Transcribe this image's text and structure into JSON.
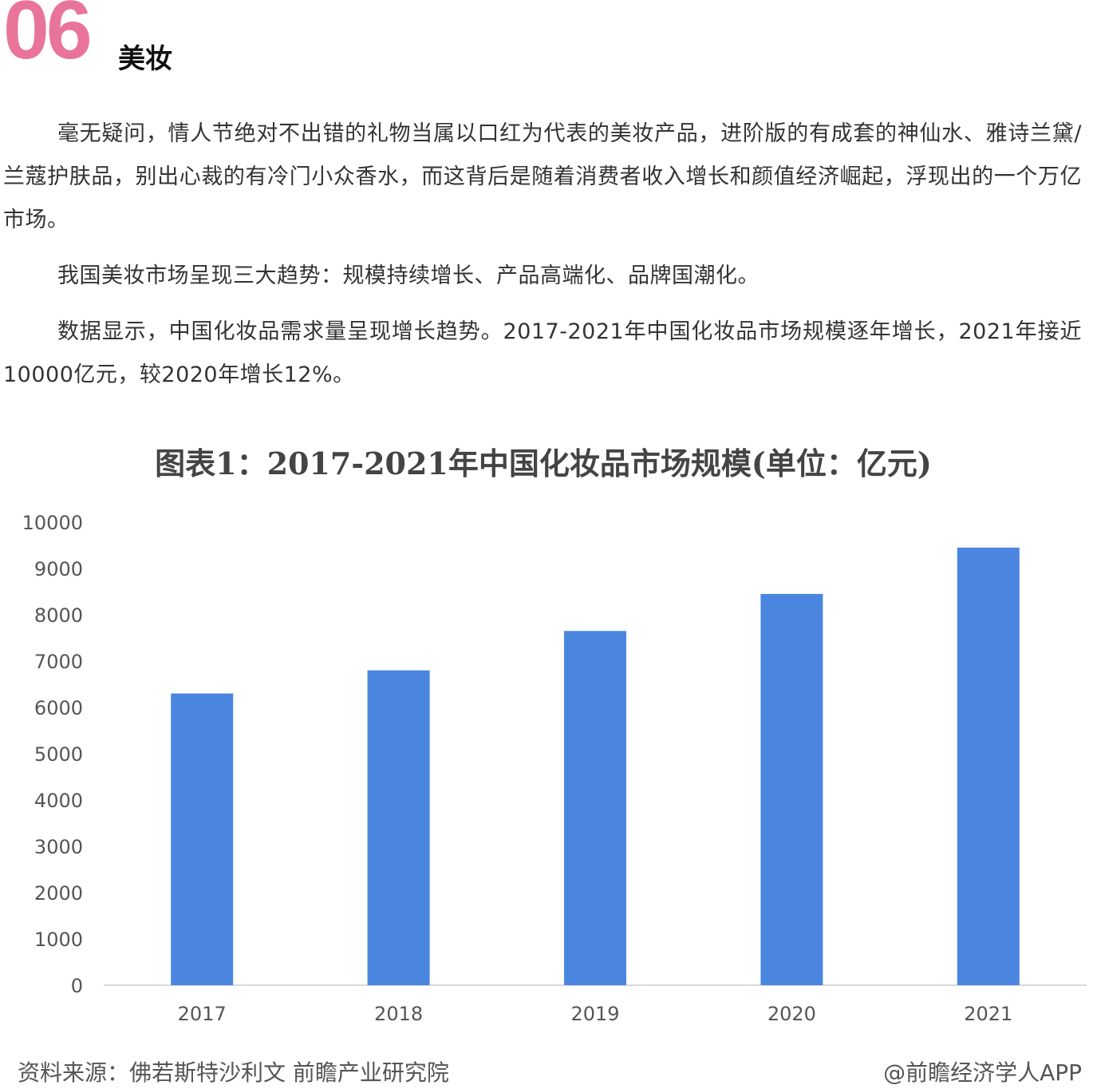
{
  "section": {
    "number": "06",
    "title": "美妆",
    "number_color": "#E9749A"
  },
  "paragraphs": [
    "毫无疑问，情人节绝对不出错的礼物当属以口红为代表的美妆产品，进阶版的有成套的神仙水、雅诗兰黛/兰蔻护肤品，别出心裁的有冷门小众香水，而这背后是随着消费者收入增长和颜值经济崛起，浮现出的一个万亿市场。",
    "我国美妆市场呈现三大趋势：规模持续增长、产品高端化、品牌国潮化。",
    "数据显示，中国化妆品需求量呈现增长趋势。2017-2021年中国化妆品市场规模逐年增长，2021年接近10000亿元，较2020年增长12%。"
  ],
  "chart": {
    "source": "资料来源：佛若斯特沙利文 前瞻产业研究院",
    "credit": "@前瞻经济学人APP"
  },
  "chart_data": {
    "type": "bar",
    "title": "图表1：2017-2021年中国化妆品市场规模(单位：亿元)",
    "categories": [
      "2017",
      "2018",
      "2019",
      "2020",
      "2021"
    ],
    "values": [
      6300,
      6800,
      7650,
      8450,
      9450
    ],
    "yticks": [
      "0",
      "1000",
      "2000",
      "3000",
      "4000",
      "5000",
      "6000",
      "7000",
      "8000",
      "9000",
      "10000"
    ],
    "ylim": [
      0,
      10000
    ],
    "bar_color": "#4A86E0",
    "grid": false,
    "legend": "none"
  }
}
